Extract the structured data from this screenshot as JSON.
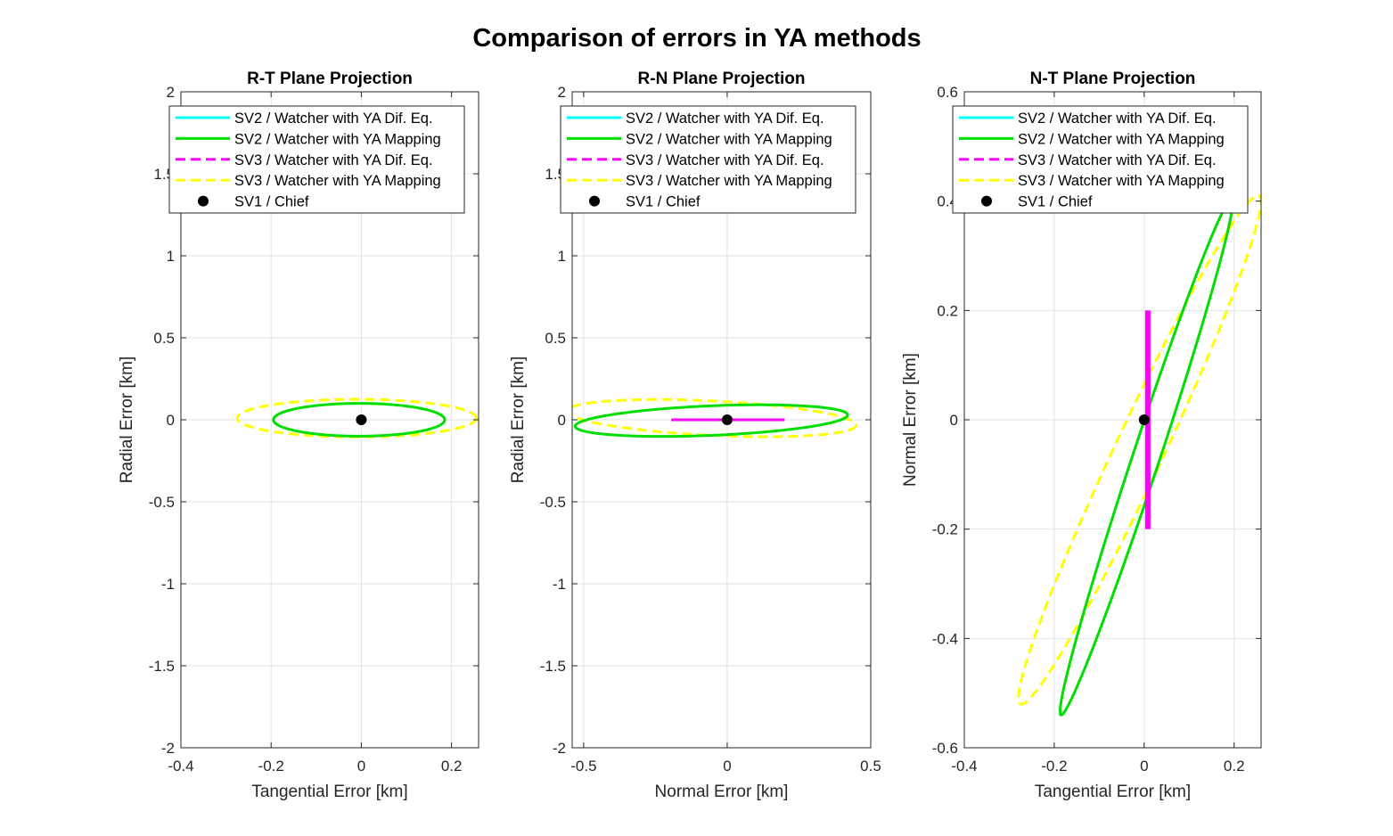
{
  "figure": {
    "title": "Comparison of errors in YA methods"
  },
  "colors": {
    "sv2_difeq": "#00ffff",
    "sv2_mapping": "#00dd00",
    "sv3_difeq": "#ff00ff",
    "sv3_mapping": "#ffff00",
    "chief": "#000000",
    "grid": "#e3e3e3",
    "axis": "#262626"
  },
  "legend": {
    "entries": [
      {
        "key": "sv2_difeq",
        "label": "SV2 / Watcher with YA Dif. Eq.",
        "style": "solid"
      },
      {
        "key": "sv2_mapping",
        "label": "SV2 / Watcher with YA Mapping",
        "style": "solid"
      },
      {
        "key": "sv3_difeq",
        "label": "SV3 / Watcher with YA Dif. Eq.",
        "style": "dashed"
      },
      {
        "key": "sv3_mapping",
        "label": "SV3 / Watcher with YA Mapping",
        "style": "dashed"
      },
      {
        "key": "chief",
        "label": "SV1 / Chief",
        "style": "marker"
      }
    ],
    "placement": "top-left"
  },
  "chart_data": [
    {
      "type": "line",
      "title": "R-T Plane Projection",
      "xlabel": "Tangential Error [km]",
      "ylabel": "Radial Error [km]",
      "xlim": [
        -0.4,
        0.26
      ],
      "ylim": [
        -2,
        2
      ],
      "xticks": [
        -0.4,
        -0.2,
        0,
        0.2
      ],
      "xtick_labels": [
        "-0.4",
        "-0.2",
        "0",
        "0.2"
      ],
      "yticks": [
        -2,
        -1.5,
        -1,
        -0.5,
        0,
        0.5,
        1,
        1.5,
        2
      ],
      "ytick_labels": [
        "-2",
        "-1.5",
        "-1",
        "-0.5",
        "0",
        "0.5",
        "1",
        "1.5",
        "2"
      ],
      "grid": true,
      "series": [
        {
          "key": "sv3_mapping",
          "shape": "ellipse",
          "center": [
            -0.01,
            0.01
          ],
          "semi_axes": [
            0.265,
            0.115
          ],
          "rotation_deg": 0
        },
        {
          "key": "sv2_mapping",
          "shape": "ellipse",
          "center": [
            -0.005,
            0.0
          ],
          "semi_axes": [
            0.19,
            0.1
          ],
          "rotation_deg": 0
        },
        {
          "key": "sv2_difeq",
          "shape": "segment",
          "points": [
            [
              -0.005,
              0
            ],
            [
              0.012,
              0
            ]
          ]
        },
        {
          "key": "chief",
          "shape": "marker",
          "points": [
            [
              0,
              0
            ]
          ]
        }
      ]
    },
    {
      "type": "line",
      "title": "R-N Plane Projection",
      "xlabel": "Normal Error [km]",
      "ylabel": "Radial Error [km]",
      "xlim": [
        -0.54,
        0.5
      ],
      "ylim": [
        -2,
        2
      ],
      "xticks": [
        -0.5,
        0,
        0.5
      ],
      "xtick_labels": [
        "-0.5",
        "0",
        "0.5"
      ],
      "yticks": [
        -2,
        -1.5,
        -1,
        -0.5,
        0,
        0.5,
        1,
        1.5,
        2
      ],
      "ytick_labels": [
        "-2",
        "-1.5",
        "-1",
        "-0.5",
        "0",
        "0.5",
        "1",
        "1.5",
        "2"
      ],
      "grid": true,
      "series": [
        {
          "key": "sv3_mapping",
          "shape": "ellipse",
          "center": [
            -0.055,
            0.01
          ],
          "semi_axes": [
            0.505,
            0.105
          ],
          "rotation_deg": -2.8
        },
        {
          "key": "sv2_mapping",
          "shape": "ellipse",
          "center": [
            -0.055,
            -0.005
          ],
          "semi_axes": [
            0.475,
            0.09
          ],
          "rotation_deg": 2.4
        },
        {
          "key": "sv3_difeq",
          "shape": "segment",
          "points": [
            [
              -0.195,
              0
            ],
            [
              0.2,
              0
            ]
          ]
        },
        {
          "key": "chief",
          "shape": "marker",
          "points": [
            [
              0,
              0
            ]
          ]
        }
      ]
    },
    {
      "type": "line",
      "title": "N-T Plane Projection",
      "xlabel": "Tangential Error [km]",
      "ylabel": "Normal Error [km]",
      "xlim": [
        -0.4,
        0.26
      ],
      "ylim": [
        -0.6,
        0.6
      ],
      "xticks": [
        -0.4,
        -0.2,
        0,
        0.2
      ],
      "xtick_labels": [
        "-0.4",
        "-0.2",
        "0",
        "0.2"
      ],
      "yticks": [
        -0.6,
        -0.4,
        -0.2,
        0,
        0.2,
        0.4,
        0.6
      ],
      "ytick_labels": [
        "-0.6",
        "-0.4",
        "-0.2",
        "0",
        "0.2",
        "0.4",
        "0.6"
      ],
      "grid": true,
      "series": [
        {
          "key": "sv3_mapping",
          "shape": "tilted-ellipse",
          "center": [
            -0.01,
            -0.055
          ],
          "extreme_points": [
            [
              -0.275,
              -0.52
            ],
            [
              0.255,
              0.41
            ]
          ],
          "half_width": 0.054
        },
        {
          "key": "sv2_mapping",
          "shape": "tilted-ellipse",
          "center": [
            0.0,
            -0.085
          ],
          "extreme_points": [
            [
              -0.185,
              -0.54
            ],
            [
              0.195,
              0.405
            ]
          ],
          "half_width": 0.03
        },
        {
          "key": "sv3_difeq",
          "shape": "band",
          "points": [
            [
              0.008,
              -0.2
            ],
            [
              0.008,
              0.2
            ]
          ],
          "half_width": 0.006
        },
        {
          "key": "chief",
          "shape": "marker",
          "points": [
            [
              0,
              0
            ]
          ]
        }
      ]
    }
  ]
}
